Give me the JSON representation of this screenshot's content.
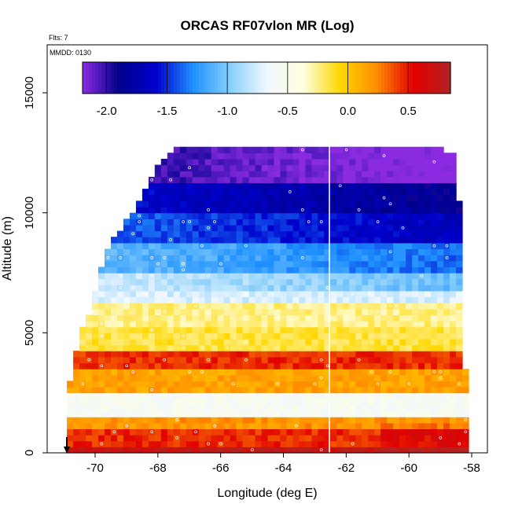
{
  "chart_data": {
    "type": "heatmap",
    "title": "ORCAS RF07vlon MR (Log)",
    "xlabel": "Longitude (deg E)",
    "ylabel": "Altitude (m)",
    "xlim": [
      -71.0,
      -57.6
    ],
    "ylim": [
      0,
      16300
    ],
    "x_ticks": [
      "-70",
      "-68",
      "-66",
      "-64",
      "-62",
      "-60",
      "-58"
    ],
    "x_tick_values": [
      -70,
      -68,
      -66,
      -64,
      -62,
      -60,
      -58
    ],
    "y_ticks": [
      "0",
      "5000",
      "10000",
      "15000"
    ],
    "y_tick_values": [
      0,
      5000,
      10000,
      15000
    ],
    "annotations": {
      "flts": "Flts: 7",
      "mmdd": "MMDD: 0130"
    },
    "colorbar": {
      "range": [
        -2.2,
        0.85
      ],
      "ticks": [
        "-2.0",
        "-1.5",
        "-1.0",
        "-0.5",
        "0.0",
        "0.5"
      ],
      "tick_values": [
        -2.0,
        -1.5,
        -1.0,
        -0.5,
        0.0,
        0.5
      ],
      "colors": [
        "#8a2be2",
        "#00008b",
        "#0000cd",
        "#1e90ff",
        "#87cefa",
        "#f0f8ff",
        "#ffffe0",
        "#ffd700",
        "#ff8c00",
        "#e00000",
        "#b22222"
      ]
    },
    "bins": {
      "x_start": -70.9,
      "x_step": 0.2,
      "z_start": 0,
      "z_step": 250,
      "z_count": 52
    },
    "top_envelope": [
      [
        -71.0,
        2200
      ],
      [
        -70.8,
        3500
      ],
      [
        -70.6,
        4700
      ],
      [
        -70.3,
        5700
      ],
      [
        -70.0,
        7200
      ],
      [
        -69.6,
        8700
      ],
      [
        -69.2,
        9400
      ],
      [
        -68.8,
        10100
      ],
      [
        -68.4,
        11100
      ],
      [
        -68.0,
        12000
      ],
      [
        -67.6,
        12500
      ],
      [
        -67.2,
        12700
      ],
      [
        -62.6,
        12700
      ],
      [
        -62.0,
        12700
      ],
      [
        -59.0,
        12500
      ],
      [
        -58.5,
        12500
      ],
      [
        -58.5,
        10300
      ],
      [
        -58.4,
        10300
      ],
      [
        -58.4,
        6500
      ],
      [
        -58.3,
        6500
      ],
      [
        -58.3,
        3300
      ],
      [
        -58.1,
        1200
      ]
    ],
    "profile_longitude": -62.5,
    "layers": [
      {
        "z": [
          0,
          300
        ],
        "value": 0.75
      },
      {
        "z": [
          300,
          900
        ],
        "value": 0.45
      },
      {
        "z": [
          900,
          1500
        ],
        "value": 0.2
      },
      {
        "z": [
          1500,
          2500
        ],
        "value": -0.55
      },
      {
        "z": [
          2500,
          3500
        ],
        "value": 0.15
      },
      {
        "z": [
          3500,
          4300
        ],
        "value": 0.45
      },
      {
        "z": [
          4300,
          5200
        ],
        "value": -0.15
      },
      {
        "z": [
          5200,
          6300
        ],
        "value": -0.25
      },
      {
        "z": [
          6300,
          7500
        ],
        "value": -0.75
      },
      {
        "z": [
          7500,
          8700
        ],
        "value": -1.05
      },
      {
        "z": [
          8700,
          10000
        ],
        "value": -1.35
      },
      {
        "z": [
          10000,
          11200
        ],
        "value": -1.55
      },
      {
        "z": [
          11200,
          12700
        ],
        "value": -1.95
      }
    ]
  }
}
